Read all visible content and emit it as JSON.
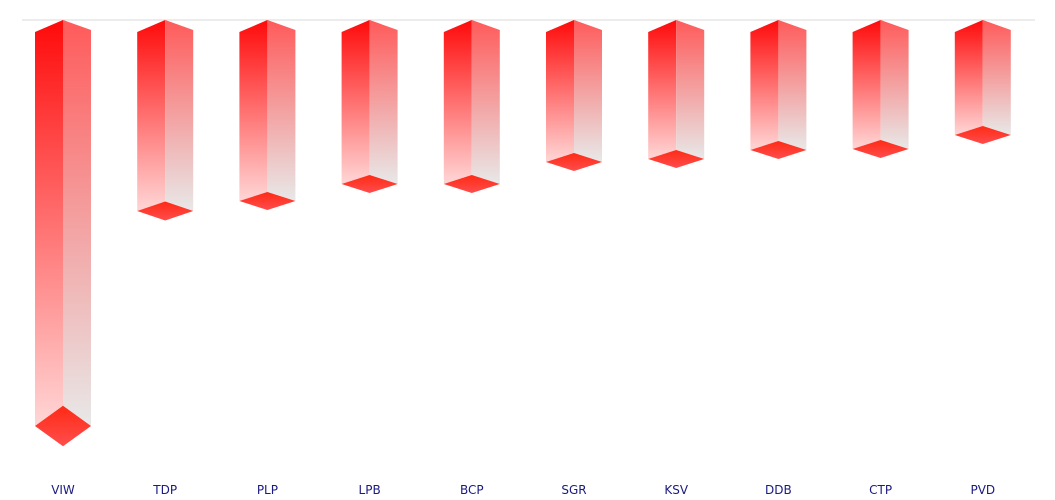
{
  "chart_data": {
    "type": "bar",
    "orientation": "vertical-3d",
    "categories": [
      "VIW",
      "TDP",
      "PLP",
      "LPB",
      "BCP",
      "SGR",
      "KSV",
      "DDB",
      "CTP",
      "PVD"
    ],
    "values": [
      -40.6,
      -19.1,
      -18.1,
      -16.4,
      -16.4,
      -14.2,
      -13.9,
      -13.0,
      -12.9,
      -11.5
    ],
    "title": "",
    "xlabel": "",
    "ylabel": "",
    "grid": false,
    "legend": "none",
    "colors": {
      "bar_front_top": "#ff0a0a",
      "bar_front_bottom": "#ffd6d6",
      "bar_side_top": "#ff5a5a",
      "bar_side_bottom": "#e8e8e8",
      "bar_end": "#ff3a30",
      "baseline": "#d8d8d8",
      "label": "#1a1a80"
    }
  }
}
